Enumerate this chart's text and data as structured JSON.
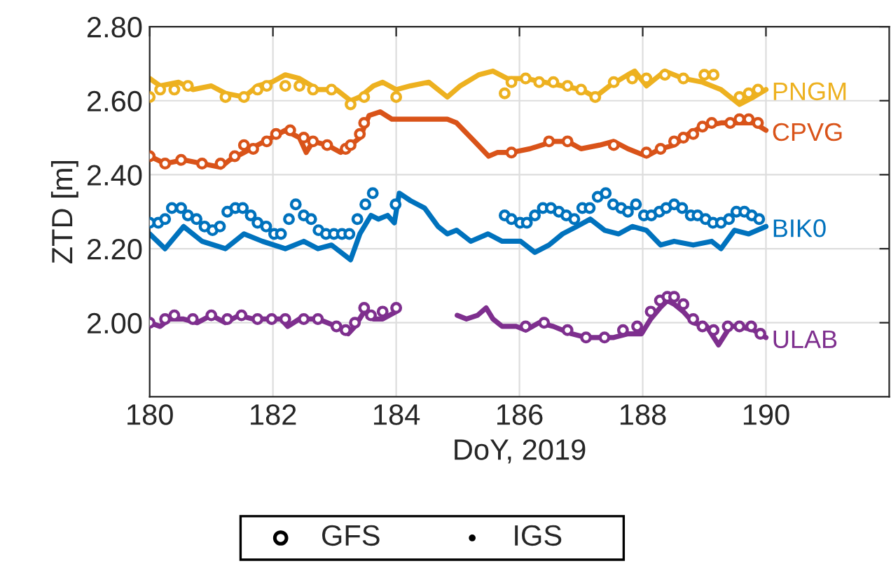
{
  "chart_data": {
    "type": "scatter",
    "xlabel": "DoY, 2019",
    "ylabel": "ZTD [m]",
    "xlim": [
      180,
      192
    ],
    "xticks": [
      180,
      182,
      184,
      186,
      188,
      190
    ],
    "ylim": [
      1.8,
      2.8
    ],
    "yticks": [
      {
        "value": 2.0,
        "label": "2.00"
      },
      {
        "value": 2.2,
        "label": "2.20"
      },
      {
        "value": 2.4,
        "label": "2.40"
      },
      {
        "value": 2.6,
        "label": "2.60"
      },
      {
        "value": 2.8,
        "label": "2.80"
      }
    ],
    "grid": true,
    "legend": "bottom",
    "series": [
      {
        "marker": "circle",
        "color": "#edb120",
        "x": [
          180.0,
          180.17,
          180.4,
          180.62,
          181.23,
          181.53,
          181.75,
          181.9,
          182.2,
          182.43,
          182.65,
          182.95,
          183.26,
          183.48,
          184.0,
          185.76,
          185.87,
          186.1,
          186.32,
          186.55,
          186.78,
          187.0,
          187.23,
          187.53,
          187.83,
          188.06,
          188.36,
          188.66,
          189.0,
          189.15,
          189.57,
          189.72,
          189.87
        ],
        "values": [
          2.61,
          2.63,
          2.63,
          2.64,
          2.61,
          2.61,
          2.63,
          2.64,
          2.64,
          2.64,
          2.63,
          2.63,
          2.59,
          2.61,
          2.61,
          2.62,
          2.65,
          2.66,
          2.65,
          2.65,
          2.64,
          2.63,
          2.61,
          2.65,
          2.66,
          2.66,
          2.67,
          2.66,
          2.67,
          2.67,
          2.61,
          2.62,
          2.63
        ]
      },
      {
        "name": "PNGM",
        "type": "line",
        "color": "#edb120",
        "x": [
          180.0,
          180.17,
          180.47,
          180.7,
          181.0,
          181.23,
          181.53,
          181.75,
          181.98,
          182.2,
          182.43,
          182.73,
          183.03,
          183.26,
          183.41,
          183.63,
          183.78,
          184.0,
          184.23,
          184.53,
          184.83,
          185.04,
          185.34,
          185.57,
          185.8,
          186.1,
          186.4,
          186.7,
          187.0,
          187.23,
          187.46,
          187.76,
          187.87,
          188.06,
          188.36,
          188.66,
          188.97,
          189.27,
          189.57,
          189.8,
          190.0
        ],
        "values": [
          2.66,
          2.64,
          2.65,
          2.63,
          2.64,
          2.62,
          2.61,
          2.64,
          2.65,
          2.67,
          2.66,
          2.63,
          2.63,
          2.6,
          2.61,
          2.64,
          2.65,
          2.63,
          2.64,
          2.65,
          2.61,
          2.64,
          2.67,
          2.68,
          2.66,
          2.66,
          2.65,
          2.64,
          2.63,
          2.61,
          2.64,
          2.67,
          2.68,
          2.64,
          2.68,
          2.66,
          2.65,
          2.63,
          2.59,
          2.61,
          2.63
        ]
      },
      {
        "marker": "circle",
        "color": "#d95319",
        "x": [
          180.0,
          180.25,
          180.51,
          180.85,
          181.15,
          181.38,
          181.53,
          181.68,
          181.9,
          182.05,
          182.28,
          182.5,
          182.65,
          182.88,
          183.18,
          183.26,
          183.41,
          183.48,
          185.87,
          186.48,
          186.78,
          187.53,
          188.06,
          188.29,
          188.51,
          188.66,
          188.82,
          188.97,
          189.12,
          189.42,
          189.57,
          189.72,
          189.87
        ],
        "values": [
          2.45,
          2.43,
          2.44,
          2.43,
          2.43,
          2.45,
          2.48,
          2.47,
          2.49,
          2.51,
          2.52,
          2.5,
          2.49,
          2.48,
          2.47,
          2.48,
          2.51,
          2.54,
          2.46,
          2.49,
          2.49,
          2.48,
          2.46,
          2.47,
          2.49,
          2.5,
          2.51,
          2.53,
          2.54,
          2.54,
          2.55,
          2.55,
          2.54
        ]
      },
      {
        "name": "CPVG",
        "type": "line",
        "color": "#d95319",
        "x": [
          180.0,
          180.25,
          180.55,
          180.85,
          181.15,
          181.3,
          181.53,
          181.75,
          181.98,
          182.2,
          182.43,
          182.54,
          182.65,
          182.88,
          183.1,
          183.26,
          183.41,
          183.56,
          183.74,
          183.93,
          184.23,
          184.53,
          184.83,
          184.98,
          185.27,
          185.5,
          185.64,
          185.87,
          186.17,
          186.55,
          186.78,
          187.0,
          187.3,
          187.53,
          187.76,
          188.06,
          188.29,
          188.51,
          188.74,
          188.97,
          189.27,
          189.57,
          189.8,
          190.0
        ],
        "values": [
          2.45,
          2.43,
          2.44,
          2.43,
          2.42,
          2.44,
          2.46,
          2.48,
          2.5,
          2.52,
          2.5,
          2.46,
          2.49,
          2.48,
          2.46,
          2.48,
          2.5,
          2.56,
          2.57,
          2.55,
          2.55,
          2.55,
          2.55,
          2.54,
          2.49,
          2.45,
          2.46,
          2.46,
          2.47,
          2.49,
          2.49,
          2.47,
          2.48,
          2.49,
          2.47,
          2.45,
          2.47,
          2.48,
          2.51,
          2.53,
          2.54,
          2.54,
          2.54,
          2.52
        ]
      },
      {
        "marker": "circle",
        "color": "#0072bd",
        "x": [
          180.0,
          180.14,
          180.25,
          180.36,
          180.51,
          180.62,
          180.76,
          180.89,
          181.02,
          181.14,
          181.26,
          181.39,
          181.51,
          181.64,
          181.75,
          181.89,
          182.02,
          182.13,
          182.26,
          182.37,
          182.5,
          182.62,
          182.74,
          182.86,
          182.99,
          183.12,
          183.24,
          183.37,
          183.5,
          183.62,
          183.99,
          185.76,
          185.87,
          186.01,
          186.12,
          186.25,
          186.38,
          186.51,
          186.64,
          186.76,
          186.89,
          187.02,
          187.14,
          187.27,
          187.4,
          187.52,
          187.65,
          187.76,
          187.89,
          188.02,
          188.14,
          188.27,
          188.38,
          188.51,
          188.64,
          188.78,
          188.89,
          189.02,
          189.14,
          189.27,
          189.4,
          189.52,
          189.65,
          189.77,
          189.89
        ],
        "values": [
          2.27,
          2.27,
          2.28,
          2.31,
          2.31,
          2.29,
          2.28,
          2.26,
          2.25,
          2.26,
          2.3,
          2.31,
          2.31,
          2.29,
          2.27,
          2.26,
          2.24,
          2.24,
          2.28,
          2.32,
          2.29,
          2.28,
          2.25,
          2.24,
          2.24,
          2.24,
          2.24,
          2.28,
          2.32,
          2.35,
          2.32,
          2.29,
          2.28,
          2.27,
          2.27,
          2.29,
          2.31,
          2.31,
          2.3,
          2.29,
          2.28,
          2.31,
          2.31,
          2.34,
          2.35,
          2.32,
          2.31,
          2.3,
          2.32,
          2.29,
          2.29,
          2.3,
          2.31,
          2.32,
          2.31,
          2.29,
          2.29,
          2.28,
          2.27,
          2.27,
          2.28,
          2.3,
          2.3,
          2.29,
          2.28
        ]
      },
      {
        "name": "BIK0",
        "type": "line",
        "color": "#0072bd",
        "x": [
          180.0,
          180.25,
          180.55,
          180.85,
          181.23,
          181.53,
          181.83,
          182.2,
          182.5,
          182.73,
          182.95,
          183.26,
          183.41,
          183.59,
          183.71,
          183.86,
          183.97,
          184.05,
          184.23,
          184.46,
          184.68,
          184.83,
          184.98,
          185.21,
          185.49,
          185.72,
          186.02,
          186.25,
          186.48,
          186.7,
          186.93,
          187.15,
          187.38,
          187.61,
          187.83,
          188.06,
          188.29,
          188.51,
          188.82,
          189.12,
          189.27,
          189.49,
          189.72,
          190.0
        ],
        "values": [
          2.24,
          2.2,
          2.26,
          2.22,
          2.2,
          2.24,
          2.22,
          2.2,
          2.22,
          2.2,
          2.21,
          2.17,
          2.24,
          2.29,
          2.28,
          2.29,
          2.27,
          2.35,
          2.33,
          2.31,
          2.26,
          2.24,
          2.25,
          2.22,
          2.24,
          2.22,
          2.22,
          2.19,
          2.21,
          2.24,
          2.26,
          2.28,
          2.25,
          2.24,
          2.26,
          2.25,
          2.21,
          2.22,
          2.21,
          2.22,
          2.2,
          2.25,
          2.24,
          2.26
        ]
      },
      {
        "marker": "circle",
        "color": "#7e2f8e",
        "x": [
          180.0,
          180.25,
          180.4,
          180.7,
          181.0,
          181.26,
          181.49,
          181.75,
          181.98,
          182.2,
          182.5,
          182.73,
          183.03,
          183.18,
          183.33,
          183.48,
          183.59,
          183.78,
          184.0,
          186.1,
          186.4,
          186.78,
          187.08,
          187.38,
          187.68,
          187.91,
          188.13,
          188.28,
          188.4,
          188.51,
          188.66,
          188.82,
          188.97,
          189.15,
          189.38,
          189.57,
          189.76,
          189.91
        ],
        "values": [
          2.0,
          2.01,
          2.02,
          2.01,
          2.02,
          2.01,
          2.02,
          2.01,
          2.01,
          2.01,
          2.01,
          2.01,
          1.99,
          1.98,
          2.0,
          2.04,
          2.02,
          2.03,
          2.04,
          1.99,
          2.0,
          1.98,
          1.96,
          1.96,
          1.98,
          1.99,
          2.03,
          2.06,
          2.07,
          2.07,
          2.05,
          2.01,
          1.99,
          1.98,
          1.99,
          1.99,
          1.99,
          1.97
        ]
      },
      {
        "name": "ULAB",
        "type": "line",
        "color": "#7e2f8e",
        "x": [
          180.0,
          180.17,
          180.32,
          180.55,
          180.77,
          181.0,
          181.23,
          181.45,
          181.68,
          181.9,
          182.13,
          182.24,
          182.43,
          182.73,
          182.88,
          183.03,
          183.22,
          183.33,
          183.48,
          183.63,
          183.78,
          184.0,
          184.98,
          184.99,
          185.14,
          185.32,
          185.46,
          185.57,
          185.72,
          185.95,
          186.1,
          186.32,
          186.55,
          186.85,
          187.08,
          187.31,
          187.53,
          187.76,
          187.98,
          188.13,
          188.28,
          188.4,
          188.51,
          188.66,
          188.82,
          189.04,
          189.23,
          189.42,
          189.57,
          189.8,
          190.0
        ],
        "values": [
          2.0,
          1.99,
          2.01,
          2.01,
          2.0,
          2.02,
          2.0,
          2.02,
          2.01,
          2.01,
          2.01,
          1.99,
          2.01,
          2.01,
          2.0,
          1.99,
          1.97,
          1.99,
          2.03,
          2.01,
          2.01,
          2.03,
          null,
          2.02,
          2.01,
          2.02,
          2.04,
          2.01,
          1.99,
          1.99,
          1.98,
          2.0,
          1.99,
          1.97,
          1.96,
          1.96,
          1.96,
          1.97,
          1.97,
          2.01,
          2.04,
          2.06,
          2.05,
          2.03,
          2.0,
          1.99,
          1.94,
          1.99,
          1.99,
          1.98,
          1.96
        ]
      }
    ],
    "annotations": [
      "GFS",
      "IGS"
    ]
  }
}
